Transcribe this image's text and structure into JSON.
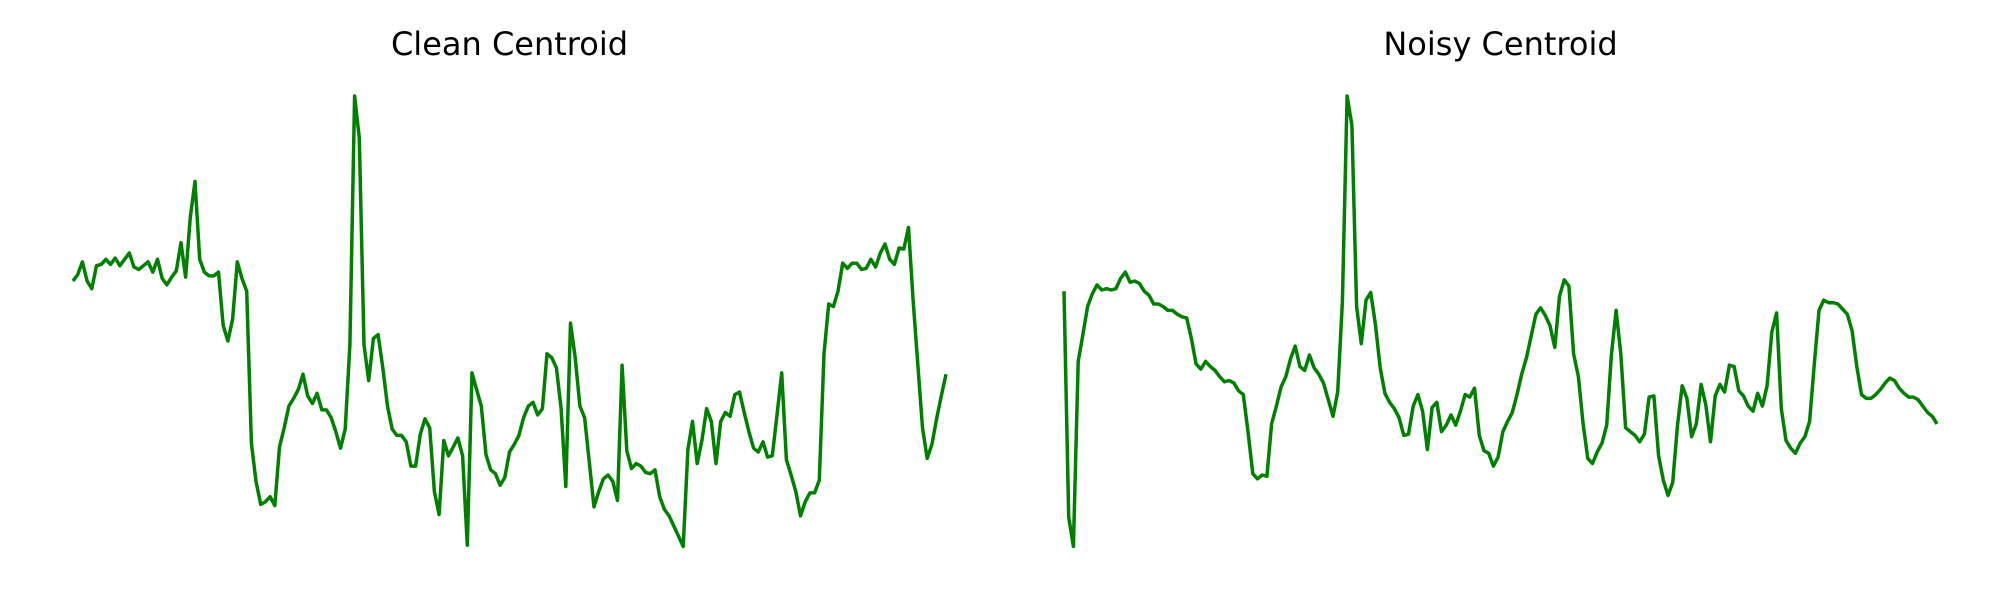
{
  "chart_data": [
    {
      "type": "line",
      "title": "Clean Centroid",
      "color": "#008000",
      "ylim": [
        0,
        355
      ],
      "values": [
        210,
        215,
        225,
        210,
        204,
        222,
        223,
        227,
        223,
        228,
        222,
        227,
        232,
        221,
        219,
        222,
        225,
        217,
        227,
        212,
        207,
        213,
        218,
        240,
        213,
        260,
        288,
        227,
        217,
        214,
        214,
        217,
        175,
        163,
        180,
        225,
        212,
        202,
        83,
        53,
        35,
        37,
        41,
        34,
        80,
        95,
        112,
        118,
        125,
        137,
        120,
        114,
        122,
        109,
        109,
        103,
        92,
        79,
        94,
        160,
        355,
        322,
        160,
        132,
        165,
        168,
        142,
        112,
        94,
        89,
        89,
        84,
        65,
        65,
        90,
        102,
        95,
        45,
        27,
        85,
        73,
        80,
        87,
        73,
        3,
        138,
        125,
        112,
        74,
        62,
        59,
        50,
        56,
        76,
        82,
        89,
        103,
        112,
        115,
        105,
        110,
        153,
        150,
        142,
        110,
        49,
        177,
        150,
        112,
        103,
        68,
        33,
        45,
        55,
        58,
        53,
        38,
        144,
        77,
        63,
        67,
        65,
        60,
        59,
        62,
        41,
        31,
        26,
        18,
        10,
        2,
        78,
        100,
        67,
        85,
        110,
        100,
        67,
        100,
        107,
        104,
        121,
        123,
        107,
        92,
        79,
        76,
        84,
        72,
        73,
        105,
        138,
        70,
        58,
        45,
        26,
        37,
        44,
        44,
        54,
        153,
        192,
        190,
        202,
        224,
        220,
        224,
        224,
        219,
        220,
        227,
        221,
        232,
        239,
        227,
        223,
        236,
        235,
        252,
        195,
        145,
        95,
        71,
        82,
        102,
        120,
        137
      ]
    },
    {
      "type": "line",
      "title": "Noisy Centroid",
      "color": "#008000",
      "ylim": [
        0,
        355
      ],
      "values": [
        202,
        25,
        2,
        147,
        168,
        190,
        200,
        207,
        203,
        204,
        203,
        204,
        212,
        217,
        209,
        210,
        208,
        202,
        199,
        192,
        192,
        190,
        187,
        187,
        184,
        182,
        181,
        165,
        145,
        141,
        147,
        143,
        140,
        135,
        131,
        132,
        130,
        124,
        121,
        92,
        59,
        55,
        58,
        57,
        98,
        112,
        127,
        135,
        149,
        159,
        143,
        140,
        152,
        142,
        137,
        130,
        117,
        104,
        123,
        194,
        355,
        332,
        190,
        161,
        195,
        201,
        176,
        142,
        122,
        115,
        110,
        103,
        89,
        90,
        112,
        121,
        108,
        78,
        111,
        115,
        92,
        97,
        105,
        97,
        108,
        121,
        119,
        126,
        89,
        77,
        75,
        65,
        72,
        92,
        100,
        107,
        121,
        137,
        150,
        167,
        184,
        189,
        183,
        175,
        158,
        198,
        211,
        206,
        153,
        135,
        98,
        71,
        67,
        76,
        83,
        97,
        152,
        187,
        153,
        95,
        92,
        89,
        84,
        90,
        119,
        120,
        73,
        54,
        42,
        52,
        97,
        128,
        118,
        88,
        98,
        129,
        113,
        84,
        120,
        129,
        123,
        144,
        143,
        124,
        120,
        112,
        108,
        122,
        112,
        128,
        170,
        185,
        110,
        85,
        79,
        75,
        83,
        88,
        100,
        145,
        187,
        195,
        193,
        193,
        192,
        188,
        184,
        171,
        143,
        121,
        118,
        118,
        121,
        125,
        130,
        134,
        132,
        126,
        122,
        119,
        119,
        117,
        112,
        107,
        104,
        98
      ]
    }
  ]
}
